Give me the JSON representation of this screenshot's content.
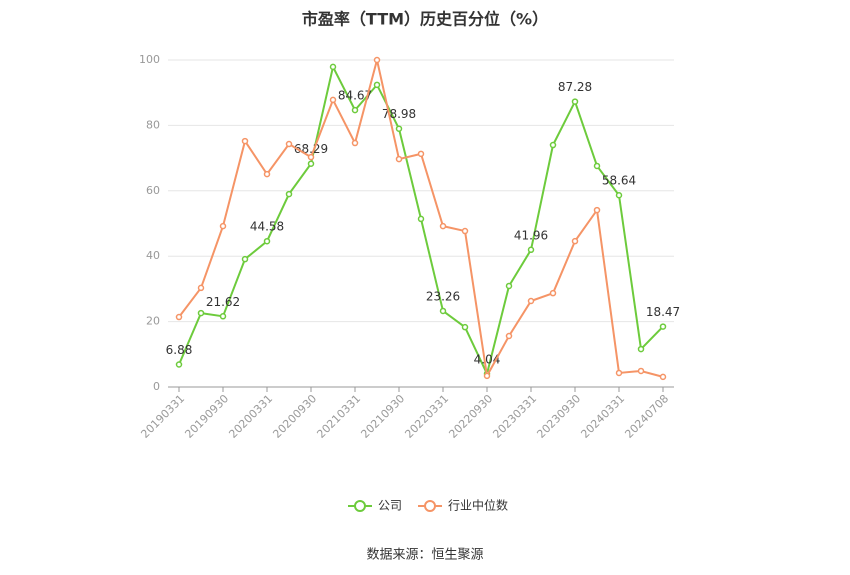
{
  "chart_data": {
    "type": "line",
    "title": "市盈率（TTM）历史百分位（%）",
    "categories": [
      "20190331",
      null,
      "20190930",
      null,
      "20200331",
      null,
      "20200930",
      null,
      "20210331",
      null,
      "20210930",
      null,
      "20220331",
      null,
      "20220930",
      null,
      "20230331",
      null,
      "20230930",
      null,
      "20240331",
      null,
      "20240708"
    ],
    "series": [
      {
        "name": "公司",
        "color": "#6dcb3c",
        "values": [
          6.88,
          22.6,
          21.62,
          39.1,
          44.58,
          59.0,
          68.29,
          97.9,
          84.67,
          92.4,
          78.98,
          51.4,
          23.26,
          18.3,
          4.04,
          30.9,
          41.96,
          74.0,
          87.28,
          67.6,
          58.64,
          11.6,
          18.47
        ],
        "value_labels": [
          "6.88",
          null,
          "21.62",
          null,
          "44.58",
          null,
          "68.29",
          null,
          "84.67",
          null,
          "78.98",
          null,
          "23.26",
          null,
          "4.04",
          null,
          "41.96",
          null,
          "87.28",
          null,
          "58.64",
          null,
          "18.47"
        ]
      },
      {
        "name": "行业中位数",
        "color": "#f59466",
        "values": [
          21.4,
          30.3,
          49.2,
          75.2,
          65.1,
          74.3,
          70.3,
          87.8,
          74.6,
          100,
          69.7,
          71.3,
          49.2,
          47.7,
          3.4,
          15.6,
          26.3,
          28.7,
          44.6,
          54.1,
          4.3,
          4.9,
          3.1
        ]
      }
    ],
    "ylim": [
      0,
      100
    ],
    "yticks": [
      0,
      20,
      40,
      60,
      80,
      100
    ],
    "grid": true,
    "legend": "bottom",
    "source": "数据来源：恒生聚源"
  }
}
